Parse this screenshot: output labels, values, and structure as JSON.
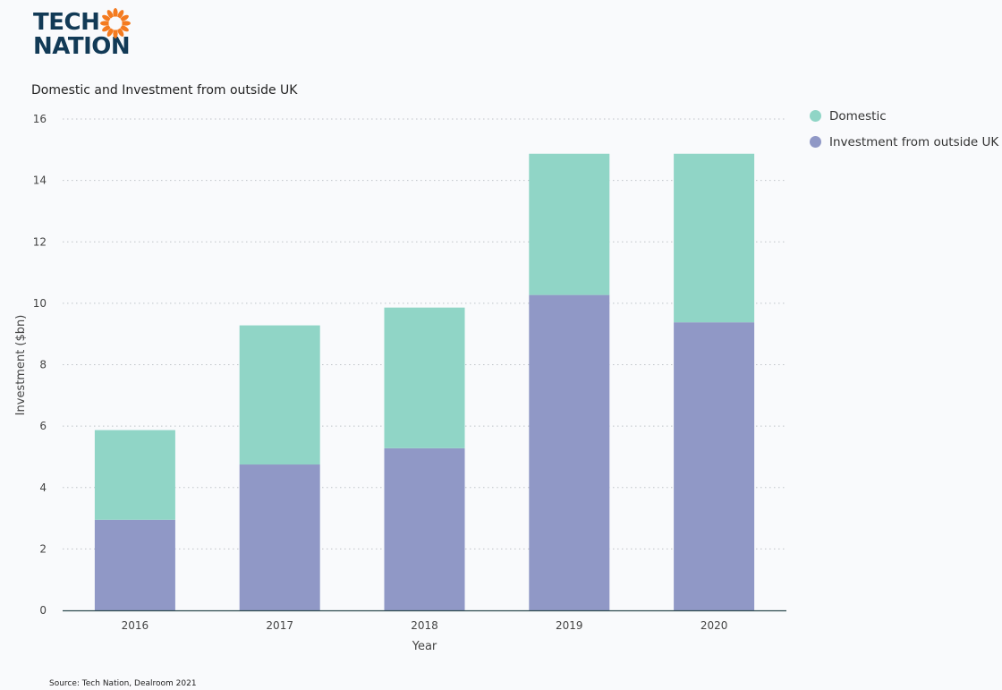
{
  "brand": {
    "line1": "TECH",
    "line2": "NATION",
    "text_color": "#123a56",
    "sun_color": "#f47b20"
  },
  "chart_title": "Domestic and Investment from outside UK",
  "source": "Source: Tech Nation, Dealroom 2021",
  "legend": {
    "items": [
      {
        "label": "Domestic",
        "color": "#90d5c6"
      },
      {
        "label": "Investment from outside UK",
        "color": "#9098c6"
      }
    ],
    "placement": "top-right"
  },
  "chart_data": {
    "type": "bar",
    "stacked": true,
    "title": "Domestic and Investment from outside UK",
    "xlabel": "Year",
    "ylabel": "Investment ($bn)",
    "categories": [
      "2016",
      "2017",
      "2018",
      "2019",
      "2020"
    ],
    "series": [
      {
        "name": "Investment from outside UK",
        "values": [
          2.95,
          4.75,
          5.28,
          10.27,
          9.38
        ],
        "color": "#9098c6"
      },
      {
        "name": "Domestic",
        "values": [
          2.92,
          4.53,
          4.58,
          4.6,
          5.49
        ],
        "color": "#90d5c6"
      }
    ],
    "ylim": [
      0,
      16
    ],
    "yticks": [
      0,
      2,
      4,
      6,
      8,
      10,
      12,
      14,
      16
    ],
    "grid": "horizontal dotted",
    "legend_placement": "top-right"
  }
}
